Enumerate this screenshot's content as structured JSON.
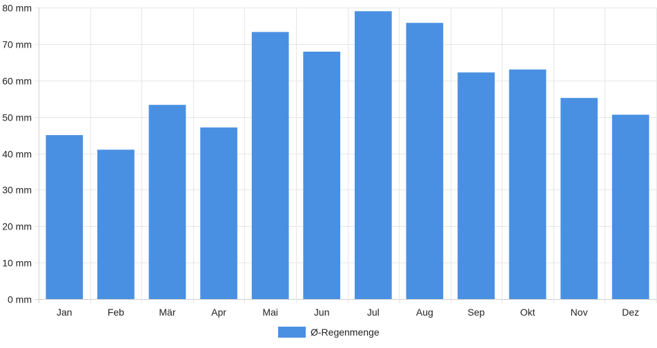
{
  "chart_data": {
    "type": "bar",
    "categories": [
      "Jan",
      "Feb",
      "Mär",
      "Apr",
      "Mai",
      "Jun",
      "Jul",
      "Aug",
      "Sep",
      "Okt",
      "Nov",
      "Dez"
    ],
    "series": [
      {
        "name": "Ø-Regenmenge",
        "color": "#4a90e2",
        "values": [
          45,
          41,
          53.3,
          47.1,
          73.3,
          67.9,
          79,
          75.8,
          62.2,
          63,
          55.2,
          50.6
        ]
      }
    ],
    "y_unit": "mm",
    "ylim": [
      0,
      80
    ],
    "y_ticks": [
      "0 mm",
      "10 mm",
      "20 mm",
      "30 mm",
      "40 mm",
      "50 mm",
      "60 mm",
      "70 mm",
      "80 mm"
    ],
    "y_tick_values": [
      0,
      10,
      20,
      30,
      40,
      50,
      60,
      70,
      80
    ],
    "grid": true,
    "legend_position": "bottom-center",
    "grid_color": "#e6e6e6",
    "axis_color": "#d0d0d0"
  }
}
